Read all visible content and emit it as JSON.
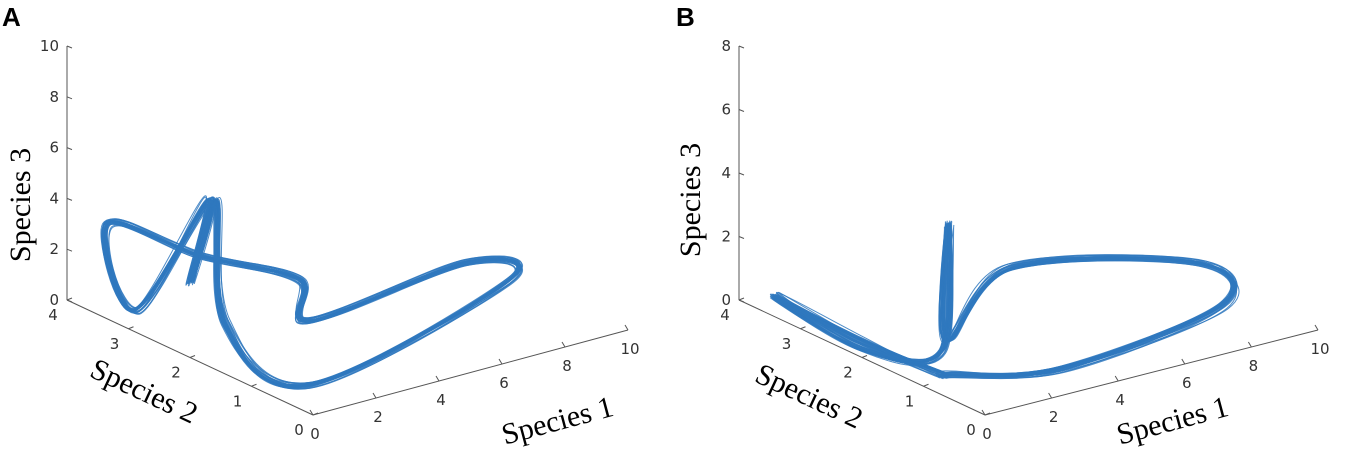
{
  "figure": {
    "panels": [
      "A",
      "B"
    ]
  },
  "colors": {
    "trajectory": "#2f78be",
    "axes": "#555555",
    "text": "#000000"
  },
  "chart_data": [
    {
      "type": "line3d",
      "panel": "A",
      "xlabel": "Species 1",
      "ylabel": "Species 2",
      "zlabel": "Species 3",
      "xlim": [
        0,
        10
      ],
      "ylim": [
        0,
        4
      ],
      "zlim": [
        0,
        10
      ],
      "xticks": [
        "0",
        "2",
        "4",
        "6",
        "8",
        "10"
      ],
      "yticks": [
        "0",
        "1",
        "2",
        "3",
        "4"
      ],
      "zticks": [
        "0",
        "2",
        "4",
        "6",
        "8",
        "10"
      ],
      "grid": false,
      "series": [
        {
          "points": [
            [
              1.2,
              2.6,
              1.9
            ],
            [
              1.6,
              2.4,
              5.2
            ],
            [
              1.5,
              2.2,
              0.6
            ],
            [
              0.6,
              0.4,
              0.5
            ],
            [
              8.8,
              1.3,
              0.9
            ],
            [
              8.6,
              1.9,
              1.0
            ],
            [
              3.0,
              1.6,
              0.9
            ],
            [
              2.5,
              1.5,
              2.8
            ],
            [
              1.3,
              2.5,
              3.0
            ],
            [
              0.5,
              3.6,
              3.3
            ],
            [
              0.6,
              3.2,
              0.3
            ],
            [
              1.4,
              2.4,
              5.3
            ]
          ],
          "loops": 28,
          "spread": 0.05
        }
      ]
    },
    {
      "type": "line3d",
      "panel": "B",
      "xlabel": "Species 1",
      "ylabel": "Species 2",
      "zlabel": "Species 3",
      "xlim": [
        0,
        10
      ],
      "ylim": [
        0,
        4
      ],
      "zlim": [
        0,
        8
      ],
      "xticks": [
        "0",
        "2",
        "4",
        "6",
        "8",
        "10"
      ],
      "yticks": [
        "0",
        "1",
        "2",
        "3",
        "4"
      ],
      "zticks": [
        "0",
        "2",
        "4",
        "6",
        "8"
      ],
      "grid": false,
      "series": [
        {
          "points": [
            [
              0.5,
              1.0,
              0.3
            ],
            [
              0.3,
              2.2,
              0.3
            ],
            [
              0.3,
              3.6,
              0.4
            ],
            [
              0.1,
              2.0,
              0.2
            ],
            [
              1.3,
              1.4,
              0.4
            ],
            [
              1.3,
              1.3,
              4.5
            ],
            [
              1.6,
              1.5,
              0.6
            ],
            [
              3.2,
              1.3,
              2.6
            ],
            [
              8.6,
              1.2,
              1.4
            ],
            [
              8.8,
              0.9,
              0.3
            ],
            [
              3.0,
              0.4,
              0.3
            ],
            [
              0.6,
              0.9,
              0.3
            ]
          ],
          "loops": 28,
          "spread": 0.05
        }
      ]
    }
  ]
}
